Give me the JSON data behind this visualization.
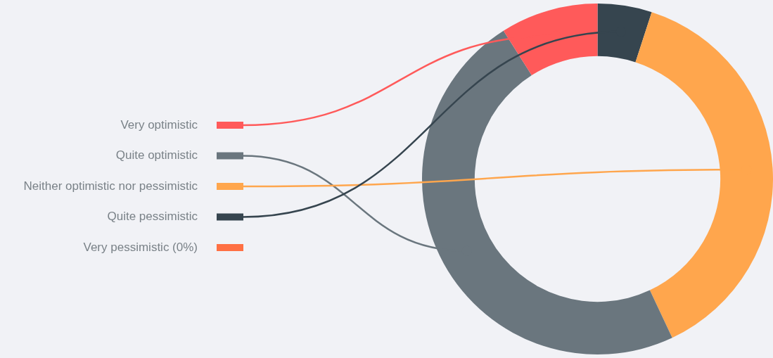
{
  "chart_data": {
    "type": "donut",
    "categories": [
      "Very optimistic",
      "Quite optimistic",
      "Neither optimistic nor pessimistic",
      "Quite pessimistic",
      "Very pessimistic (0%)"
    ],
    "values": [
      9,
      48,
      38,
      5,
      0
    ],
    "colors": [
      "#ff5a5a",
      "#6a767e",
      "#ffa64d",
      "#36454f",
      "#ff7043"
    ],
    "legend": "left"
  }
}
